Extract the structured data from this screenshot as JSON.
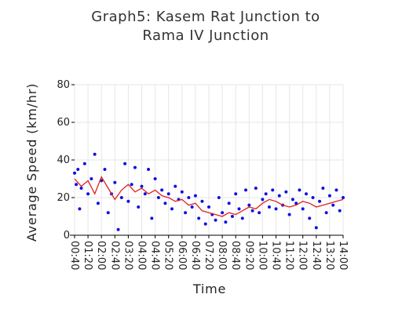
{
  "chart_data": {
    "type": "scatter",
    "title_lines": [
      "Graph5: Kasem Rat Junction to",
      "Rama IV Junction"
    ],
    "xlabel": "Time",
    "ylabel": "Average Speed (km/hr)",
    "xlim": [
      "00:40",
      "14:00"
    ],
    "ylim": [
      0,
      80
    ],
    "yticks": [
      0,
      20,
      40,
      60,
      80
    ],
    "xticks": [
      "00:40",
      "01:20",
      "02:00",
      "02:40",
      "03:20",
      "04:00",
      "04:40",
      "05:20",
      "06:00",
      "06:40",
      "07:20",
      "08:00",
      "08:40",
      "09:20",
      "10:00",
      "10:40",
      "11:20",
      "12:00",
      "12:40",
      "13:20",
      "14:00"
    ],
    "grid": true,
    "colors": {
      "points": "#1010e0",
      "trend": "#e02020"
    },
    "series": [
      {
        "kind": "points",
        "x": [
          "00:40",
          "00:45",
          "00:50",
          "00:55",
          "01:00",
          "01:10",
          "01:20",
          "01:30",
          "01:40",
          "01:50",
          "02:00",
          "02:10",
          "02:20",
          "02:30",
          "02:40",
          "02:50",
          "03:00",
          "03:10",
          "03:20",
          "03:30",
          "03:40",
          "03:50",
          "04:00",
          "04:10",
          "04:20",
          "04:30",
          "04:40",
          "04:50",
          "05:00",
          "05:10",
          "05:20",
          "05:30",
          "05:40",
          "05:50",
          "06:00",
          "06:10",
          "06:20",
          "06:30",
          "06:40",
          "06:50",
          "07:00",
          "07:10",
          "07:20",
          "07:30",
          "07:40",
          "07:50",
          "08:00",
          "08:10",
          "08:20",
          "08:30",
          "08:40",
          "08:50",
          "09:00",
          "09:10",
          "09:20",
          "09:30",
          "09:40",
          "09:50",
          "10:00",
          "10:10",
          "10:20",
          "10:30",
          "10:40",
          "10:50",
          "11:00",
          "11:10",
          "11:20",
          "11:30",
          "11:40",
          "11:50",
          "12:00",
          "12:10",
          "12:20",
          "12:30",
          "12:40",
          "12:50",
          "13:00",
          "13:10",
          "13:20",
          "13:30",
          "13:40",
          "13:50",
          "14:00"
        ],
        "y": [
          33,
          27,
          35,
          14,
          25,
          38,
          22,
          30,
          43,
          17,
          29,
          35,
          12,
          22,
          28,
          3,
          20,
          38,
          18,
          27,
          36,
          15,
          26,
          22,
          35,
          9,
          30,
          20,
          24,
          17,
          22,
          14,
          26,
          19,
          23,
          12,
          20,
          15,
          21,
          9,
          18,
          6,
          15,
          11,
          8,
          20,
          12,
          7,
          17,
          10,
          22,
          14,
          9,
          24,
          16,
          13,
          25,
          12,
          19,
          22,
          15,
          24,
          14,
          21,
          16,
          23,
          11,
          19,
          17,
          24,
          14,
          22,
          9,
          20,
          4,
          18,
          25,
          12,
          21,
          16,
          24,
          13,
          20
        ]
      },
      {
        "kind": "trend",
        "x": [
          "00:40",
          "01:00",
          "01:20",
          "01:40",
          "02:00",
          "02:20",
          "02:40",
          "03:00",
          "03:20",
          "03:40",
          "04:00",
          "04:20",
          "04:40",
          "05:00",
          "05:20",
          "05:40",
          "06:00",
          "06:20",
          "06:40",
          "07:00",
          "07:20",
          "07:40",
          "08:00",
          "08:20",
          "08:40",
          "09:00",
          "09:20",
          "09:40",
          "10:00",
          "10:20",
          "10:40",
          "11:00",
          "11:20",
          "11:40",
          "12:00",
          "12:20",
          "12:40",
          "13:00",
          "13:20",
          "13:40",
          "14:00"
        ],
        "y": [
          30,
          26,
          29,
          22,
          31,
          25,
          19,
          24,
          27,
          23,
          25,
          22,
          24,
          21,
          20,
          18,
          19,
          16,
          17,
          13,
          12,
          11,
          10,
          12,
          11,
          13,
          15,
          14,
          17,
          19,
          18,
          16,
          15,
          16,
          18,
          17,
          15,
          16,
          17,
          18,
          19
        ]
      }
    ]
  }
}
